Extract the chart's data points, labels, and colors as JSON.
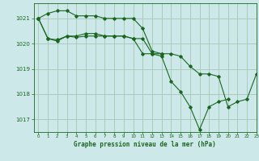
{
  "background_color": "#cce8e8",
  "grid_color": "#aaccbb",
  "line_color": "#1a6620",
  "xlabel": "Graphe pression niveau de la mer (hPa)",
  "xlim": [
    -0.5,
    23
  ],
  "ylim": [
    1016.5,
    1021.6
  ],
  "yticks": [
    1017,
    1018,
    1019,
    1020,
    1021
  ],
  "xtick_labels": [
    "0",
    "1",
    "2",
    "3",
    "4",
    "5",
    "6",
    "7",
    "8",
    "9",
    "10",
    "11",
    "12",
    "13",
    "14",
    "15",
    "16",
    "17",
    "18",
    "19",
    "20",
    "21",
    "22",
    "23"
  ],
  "xtick_pos": [
    0,
    1,
    2,
    3,
    4,
    5,
    6,
    7,
    8,
    9,
    10,
    11,
    12,
    13,
    14,
    15,
    16,
    17,
    18,
    19,
    20,
    21,
    22,
    23
  ],
  "series": [
    [
      1021.0,
      1021.2,
      1021.3,
      1021.3,
      1021.1,
      1021.1,
      1021.1,
      1021.0,
      1021.0,
      1021.0,
      1021.0,
      1020.6,
      1019.7,
      1019.6,
      1019.6,
      1019.5,
      1019.1,
      1018.8,
      1018.8,
      1018.7,
      1017.5,
      1017.7,
      1017.8,
      1018.8
    ],
    [
      1021.0,
      1020.2,
      1020.1,
      1020.3,
      1020.3,
      1020.4,
      1020.4,
      1020.3,
      1020.3,
      1020.3,
      1020.2,
      1019.6,
      1019.6,
      1019.5,
      1018.5,
      1018.1,
      1017.5,
      1016.6,
      1017.5,
      1017.7,
      1017.8,
      null,
      null,
      null
    ],
    [
      1021.0,
      1020.2,
      1020.15,
      1020.3,
      1020.25,
      1020.3,
      1020.3,
      1020.3,
      1020.3,
      1020.3,
      1020.2,
      1020.2,
      1019.6,
      1019.6,
      null,
      null,
      null,
      null,
      null,
      null,
      null,
      null,
      null,
      null
    ]
  ]
}
